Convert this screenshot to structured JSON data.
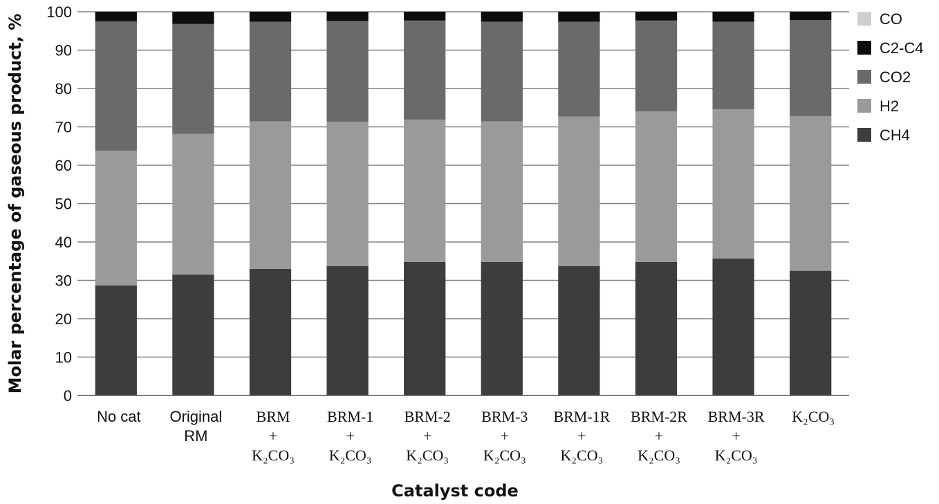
{
  "chart_data": {
    "type": "bar",
    "stacked": true,
    "xlabel": "Catalyst code",
    "ylabel": "Molar percentage of gaseous product, %",
    "ylim": [
      0,
      100
    ],
    "yticks": [
      "0",
      "10",
      "20",
      "30",
      "40",
      "50",
      "60",
      "70",
      "80",
      "90",
      "100"
    ],
    "grid": "horizontal",
    "legend_position": "right",
    "categories": [
      [
        "No cat"
      ],
      [
        "Original",
        "RM"
      ],
      [
        "BRM",
        "+",
        "K₂CO₃"
      ],
      [
        "BRM-1",
        "+",
        "K₂CO₃"
      ],
      [
        "BRM-2",
        "+",
        "K₂CO₃"
      ],
      [
        "BRM-3",
        "+",
        "K₂CO₃"
      ],
      [
        "BRM-1R",
        "+",
        "K₂CO₃"
      ],
      [
        "BRM-2R",
        "+",
        "K₂CO₃"
      ],
      [
        "BRM-3R",
        "+",
        "K₂CO₃"
      ],
      [
        "K₂CO₃"
      ]
    ],
    "series": [
      {
        "name": "CH4",
        "color": "#3d3d3d",
        "values": [
          28.7,
          31.5,
          33.0,
          33.7,
          34.8,
          34.8,
          33.7,
          34.8,
          35.7,
          32.5
        ]
      },
      {
        "name": "H2",
        "color": "#9a9a9a",
        "values": [
          35.1,
          36.7,
          38.4,
          37.6,
          37.1,
          36.6,
          39.0,
          39.2,
          38.9,
          40.3
        ]
      },
      {
        "name": "CO2",
        "color": "#6a6a6a",
        "values": [
          33.7,
          28.6,
          26.0,
          26.3,
          25.8,
          26.0,
          24.7,
          23.7,
          22.8,
          25.0
        ]
      },
      {
        "name": "C2-C4",
        "color": "#0d0d0d",
        "values": [
          2.5,
          3.2,
          2.6,
          2.4,
          2.3,
          2.6,
          2.6,
          2.3,
          2.6,
          2.2
        ]
      },
      {
        "name": "CO",
        "color": "#cfcfcf",
        "values": [
          0,
          0,
          0,
          0,
          0,
          0,
          0,
          0,
          0,
          0
        ]
      }
    ],
    "legend_order": [
      "CO",
      "C2-C4",
      "CO2",
      "H2",
      "CH4"
    ]
  }
}
